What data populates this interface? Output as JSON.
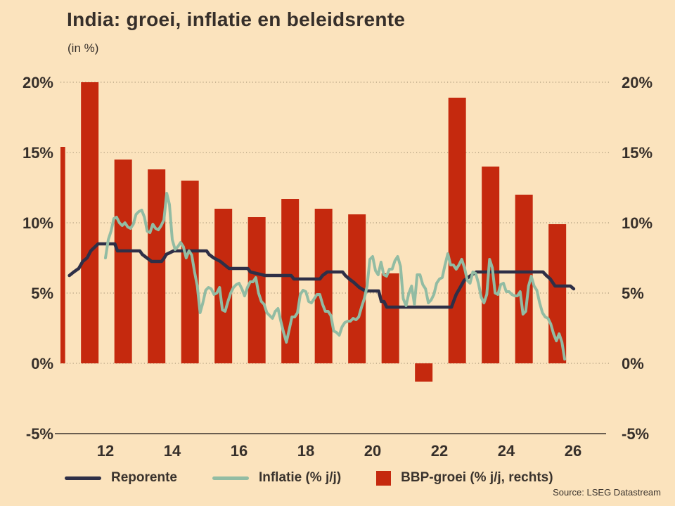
{
  "title": "India: groei, inflatie en beleidsrente",
  "subtitle": "(in %)",
  "source": "Source: LSEG Datastream",
  "colors": {
    "background": "#fbe3bd",
    "bars": "#c5290e",
    "repo_line": "#2e2f47",
    "inflation_line": "#92bca3",
    "text": "#362f2a",
    "grid": "#7a6a52"
  },
  "chart_data": {
    "type": "combo",
    "title": "India: groei, inflatie en beleidsrente",
    "subtitle": "(in %)",
    "grid": "dotted-horizontal",
    "legend_position": "bottom",
    "x_axis": {
      "ticks": [
        12,
        14,
        16,
        18,
        20,
        22,
        24,
        26
      ],
      "labels": [
        "12",
        "14",
        "16",
        "18",
        "20",
        "22",
        "24",
        "26"
      ],
      "range_years": [
        10.66,
        27.1
      ]
    },
    "y_axis": {
      "ticks": [
        20,
        15,
        10,
        5,
        0,
        -5
      ],
      "labels": [
        "20%",
        "15%",
        "10%",
        "5%",
        "0%",
        "-5%"
      ],
      "range": [
        -5,
        20
      ],
      "shown_left": true,
      "shown_right": true
    },
    "series": [
      {
        "name": "Reporente",
        "type": "line",
        "color": "#2e2f47",
        "points": [
          [
            10.92,
            6.25
          ],
          [
            11.05,
            6.5
          ],
          [
            11.2,
            6.75
          ],
          [
            11.32,
            7.25
          ],
          [
            11.45,
            7.5
          ],
          [
            11.56,
            8.0
          ],
          [
            11.78,
            8.5
          ],
          [
            12.28,
            8.5
          ],
          [
            12.36,
            8.0
          ],
          [
            13.03,
            8.0
          ],
          [
            13.1,
            7.75
          ],
          [
            13.24,
            7.5
          ],
          [
            13.38,
            7.25
          ],
          [
            13.68,
            7.25
          ],
          [
            13.76,
            7.5
          ],
          [
            13.82,
            7.75
          ],
          [
            14.04,
            8.0
          ],
          [
            15.03,
            8.0
          ],
          [
            15.1,
            7.75
          ],
          [
            15.24,
            7.5
          ],
          [
            15.44,
            7.25
          ],
          [
            15.7,
            6.75
          ],
          [
            16.26,
            6.75
          ],
          [
            16.34,
            6.5
          ],
          [
            16.78,
            6.25
          ],
          [
            17.56,
            6.25
          ],
          [
            17.64,
            6.0
          ],
          [
            18.42,
            6.0
          ],
          [
            18.5,
            6.25
          ],
          [
            18.64,
            6.5
          ],
          [
            19.1,
            6.5
          ],
          [
            19.18,
            6.25
          ],
          [
            19.3,
            6.0
          ],
          [
            19.44,
            5.75
          ],
          [
            19.6,
            5.4
          ],
          [
            19.78,
            5.15
          ],
          [
            20.18,
            5.15
          ],
          [
            20.26,
            4.4
          ],
          [
            20.34,
            4.4
          ],
          [
            20.42,
            4.0
          ],
          [
            22.36,
            4.0
          ],
          [
            22.42,
            4.4
          ],
          [
            22.5,
            4.9
          ],
          [
            22.62,
            5.4
          ],
          [
            22.74,
            5.9
          ],
          [
            22.94,
            6.25
          ],
          [
            23.1,
            6.5
          ],
          [
            25.1,
            6.5
          ],
          [
            25.2,
            6.25
          ],
          [
            25.32,
            6.0
          ],
          [
            25.46,
            5.5
          ],
          [
            25.92,
            5.5
          ],
          [
            26.02,
            5.3
          ]
        ]
      },
      {
        "name": "Inflatie (% j/j)",
        "type": "line",
        "color": "#92bca3",
        "start_year": 12.0,
        "monthly_values": [
          7.5,
          8.8,
          9.4,
          10.3,
          10.4,
          10.0,
          9.8,
          10.0,
          9.7,
          9.6,
          9.9,
          10.6,
          10.8,
          10.9,
          10.4,
          9.4,
          9.3,
          9.9,
          9.6,
          9.5,
          9.8,
          10.2,
          12.1,
          11.3,
          8.8,
          8.1,
          8.3,
          8.6,
          8.3,
          7.5,
          8.0,
          7.7,
          6.5,
          5.5,
          3.6,
          4.3,
          5.2,
          5.4,
          5.3,
          4.9,
          5.0,
          5.4,
          3.8,
          3.7,
          4.4,
          5.0,
          5.4,
          5.6,
          5.7,
          5.3,
          4.8,
          5.4,
          5.8,
          5.8,
          6.1,
          5.0,
          4.4,
          4.2,
          3.6,
          3.4,
          3.2,
          3.7,
          3.9,
          3.0,
          2.2,
          1.5,
          2.4,
          3.3,
          3.3,
          3.6,
          4.9,
          5.2,
          5.1,
          4.4,
          4.3,
          4.6,
          4.9,
          4.9,
          4.2,
          3.7,
          3.7,
          3.4,
          2.3,
          2.2,
          2.0,
          2.6,
          2.9,
          3.0,
          3.0,
          3.2,
          3.1,
          3.3,
          4.0,
          4.6,
          5.5,
          7.4,
          7.6,
          6.6,
          6.3,
          7.2,
          6.3,
          6.2,
          6.7,
          6.7,
          7.3,
          7.6,
          6.9,
          4.6,
          4.1,
          5.0,
          5.5,
          4.2,
          6.3,
          6.3,
          5.6,
          5.3,
          4.3,
          4.5,
          4.9,
          5.7,
          6.0,
          6.1,
          7.0,
          7.8,
          7.0,
          7.0,
          6.7,
          7.0,
          7.4,
          6.8,
          5.9,
          5.7,
          6.5,
          6.4,
          5.7,
          4.7,
          4.3,
          4.9,
          7.4,
          6.8,
          5.0,
          4.9,
          5.6,
          5.7,
          5.1,
          5.1,
          4.9,
          4.8,
          4.8,
          5.1,
          3.5,
          3.7,
          5.5,
          6.2,
          5.5,
          5.2,
          4.3,
          3.6,
          3.3,
          3.2,
          2.8,
          2.1,
          1.6,
          2.1,
          1.5,
          0.3
        ]
      },
      {
        "name": "BBP-groei (% j/j, rechts)",
        "type": "bar",
        "axis": "right",
        "color": "#c5290e",
        "x_years": [
          10.53,
          11.53,
          12.53,
          13.53,
          14.53,
          15.53,
          16.53,
          17.53,
          18.53,
          19.53,
          20.53,
          21.53,
          22.53,
          23.53,
          24.53,
          25.53
        ],
        "values": [
          15.4,
          20.0,
          14.5,
          13.8,
          13.0,
          11.0,
          10.4,
          11.7,
          11.0,
          10.6,
          6.4,
          -1.3,
          18.9,
          14.0,
          12.0,
          9.9
        ]
      }
    ]
  }
}
